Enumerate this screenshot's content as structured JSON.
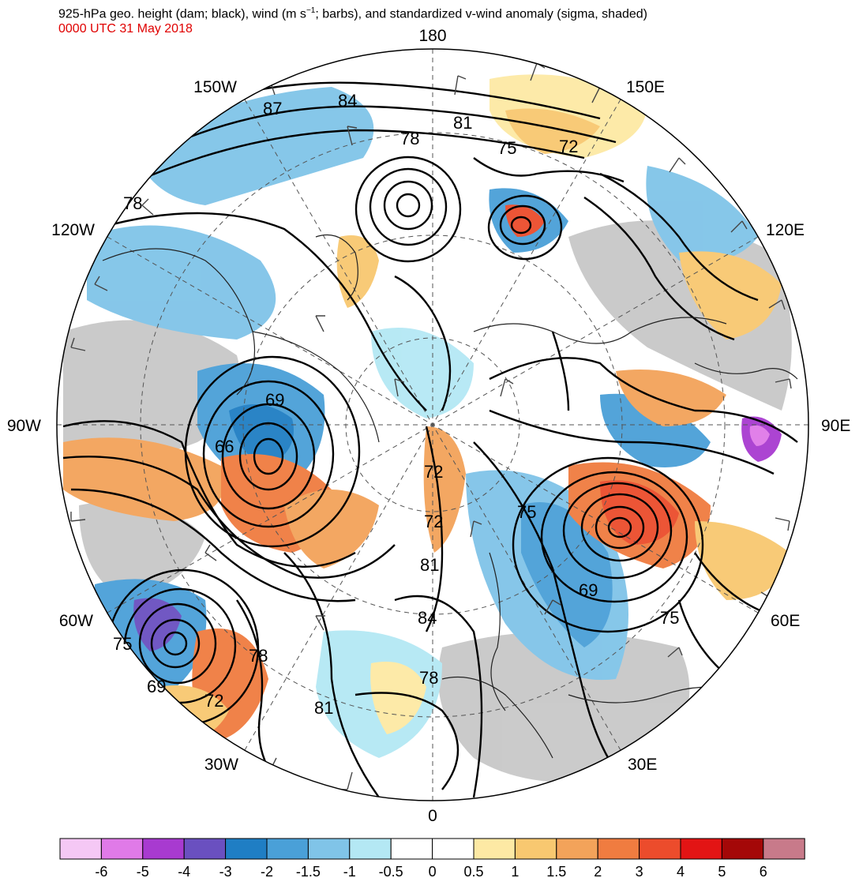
{
  "title_prefix": "925-hPa geo. height (dam; black), wind (m s",
  "title_sup": "−1",
  "title_suffix": "; barbs), and standardized v-wind anomaly (sigma, shaded)",
  "subtitle": "0000 UTC 31 May 2018",
  "lon_labels": [
    {
      "text": "180",
      "lon": 180
    },
    {
      "text": "150E",
      "lon": 150
    },
    {
      "text": "120E",
      "lon": 120
    },
    {
      "text": "90E",
      "lon": 90
    },
    {
      "text": "60E",
      "lon": 60
    },
    {
      "text": "30E",
      "lon": 30
    },
    {
      "text": "0",
      "lon": 0
    },
    {
      "text": "30W",
      "lon": -30
    },
    {
      "text": "60W",
      "lon": -60
    },
    {
      "text": "90W",
      "lon": -90
    },
    {
      "text": "120W",
      "lon": -120
    },
    {
      "text": "150W",
      "lon": -150
    }
  ],
  "contour_labels": [
    "87",
    "84",
    "81",
    "78",
    "75",
    "72",
    "78",
    "69",
    "66",
    "72",
    "72",
    "81",
    "84",
    "75",
    "69",
    "75",
    "75",
    "78",
    "69",
    "72",
    "78",
    "81"
  ],
  "colorbar": {
    "colors": [
      "#f5c8f5",
      "#e07ae8",
      "#a83ad0",
      "#6a50c0",
      "#1f7ec4",
      "#4aa0d8",
      "#80c4e8",
      "#b4e8f4",
      "#ffffff",
      "#ffffff",
      "#fde9a4",
      "#f8c870",
      "#f3a35a",
      "#f07c40",
      "#ec4c2c",
      "#e31414",
      "#a40808",
      "#c87a8a"
    ],
    "tick_labels": [
      "-6",
      "-5",
      "-4",
      "-3",
      "-2",
      "-1.5",
      "-1",
      "-0.5",
      "0",
      "0.5",
      "1",
      "1.5",
      "2",
      "3",
      "4",
      "5",
      "6"
    ]
  }
}
